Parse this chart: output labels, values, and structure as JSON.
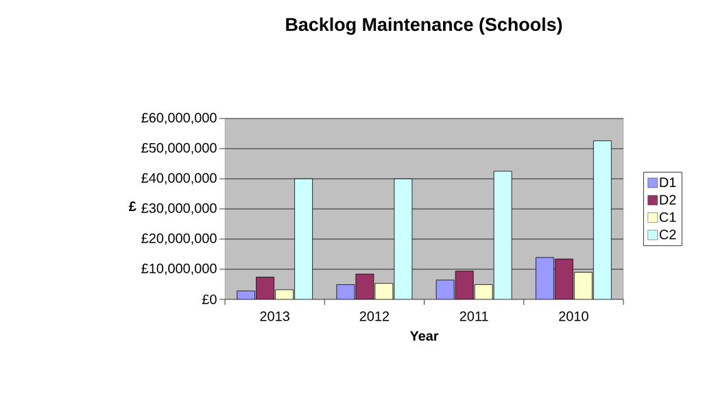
{
  "chart_data": {
    "type": "bar",
    "title": "Backlog Maintenance (Schools)",
    "xlabel": "Year",
    "ylabel": "£",
    "categories": [
      "2013",
      "2012",
      "2011",
      "2010"
    ],
    "series": [
      {
        "name": "D1",
        "color": "#9999ff",
        "values": [
          2800000,
          4900000,
          6400000,
          13900000
        ]
      },
      {
        "name": "D2",
        "color": "#993366",
        "values": [
          7400000,
          8400000,
          9400000,
          13400000
        ]
      },
      {
        "name": "C1",
        "color": "#ffffcc",
        "values": [
          3200000,
          5300000,
          4900000,
          9000000
        ]
      },
      {
        "name": "C2",
        "color": "#ccffff",
        "values": [
          40000000,
          40000000,
          42500000,
          52600000
        ]
      }
    ],
    "ylim": [
      0,
      60000000
    ],
    "yticks": [
      {
        "value": 0,
        "label": "£0"
      },
      {
        "value": 10000000,
        "label": "£10,000,000"
      },
      {
        "value": 20000000,
        "label": "£20,000,000"
      },
      {
        "value": 30000000,
        "label": "£30,000,000"
      },
      {
        "value": 40000000,
        "label": "£40,000,000"
      },
      {
        "value": 50000000,
        "label": "£50,000,000"
      },
      {
        "value": 60000000,
        "label": "£60,000,000"
      }
    ],
    "grid": "y",
    "legend": "right"
  }
}
